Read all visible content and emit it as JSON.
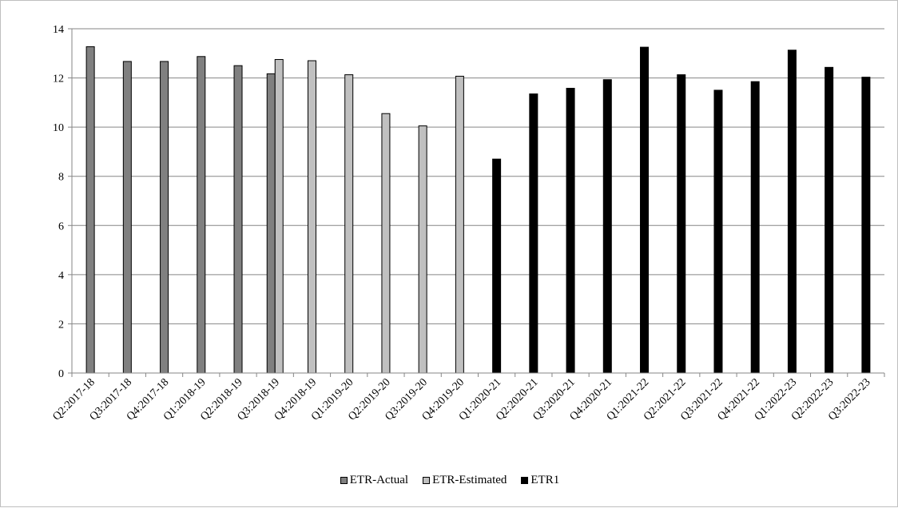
{
  "chart_data": {
    "type": "bar",
    "title": "",
    "xlabel": "",
    "ylabel": "",
    "ylim": [
      0,
      14
    ],
    "yticks": [
      0,
      2,
      4,
      6,
      8,
      10,
      12,
      14
    ],
    "grid": true,
    "legend_position": "bottom",
    "categories": [
      "Q2:2017-18",
      "Q3:2017-18",
      "Q4:2017-18",
      "Q1:2018-19",
      "Q2:2018-19",
      "Q3:2018-19",
      "Q4:2018-19",
      "Q1:2019-20",
      "Q2:2019-20",
      "Q3:2019-20",
      "Q4:2019-20",
      "Q1:2020-21",
      "Q2:2020-21",
      "Q3:2020-21",
      "Q4:2020-21",
      "Q1:2021-22",
      "Q2:2021-22",
      "Q3:2021-22",
      "Q4:2021-22",
      "Q1:2022-23",
      "Q2:2022-23",
      "Q3:2022-23"
    ],
    "series": [
      {
        "name": "ETR-Actual",
        "color": "#808080",
        "values": [
          13.27,
          12.67,
          12.67,
          12.87,
          12.5,
          12.17,
          null,
          null,
          null,
          null,
          null,
          null,
          null,
          null,
          null,
          null,
          null,
          null,
          null,
          null,
          null,
          null
        ]
      },
      {
        "name": "ETR-Estimated",
        "color": "#c0c0c0",
        "values": [
          null,
          null,
          null,
          null,
          null,
          12.75,
          12.7,
          12.13,
          10.55,
          10.05,
          12.07,
          null,
          null,
          null,
          null,
          null,
          null,
          null,
          null,
          null,
          null,
          null
        ]
      },
      {
        "name": "ETR1",
        "color": "#000000",
        "values": [
          null,
          null,
          null,
          null,
          null,
          null,
          null,
          null,
          null,
          null,
          null,
          8.7,
          11.35,
          11.58,
          11.93,
          13.25,
          12.13,
          11.5,
          11.85,
          13.13,
          12.43,
          12.03
        ]
      }
    ]
  }
}
